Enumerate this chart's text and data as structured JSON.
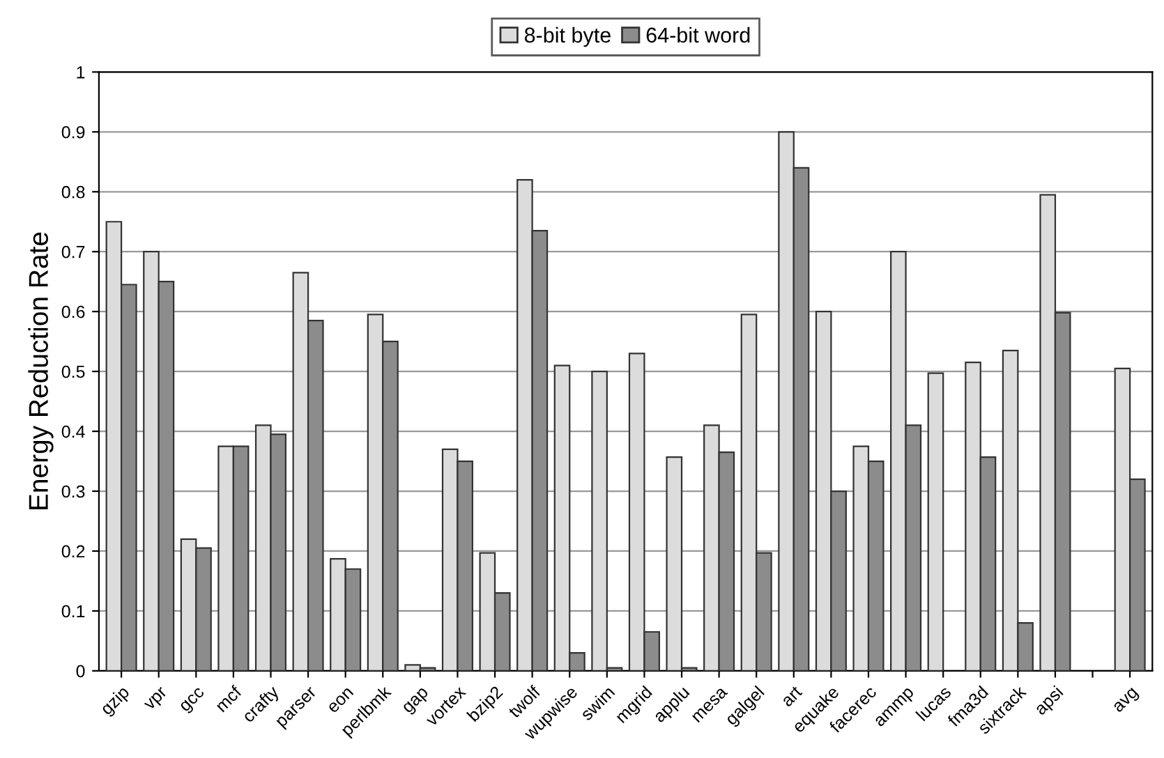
{
  "chart_data": {
    "type": "bar",
    "ylabel": "Energy Reduction Rate",
    "categories": [
      "gzip",
      "vpr",
      "gcc",
      "mcf",
      "crafty",
      "parser",
      "eon",
      "perlbmk",
      "gap",
      "vortex",
      "bzip2",
      "twolf",
      "wupwise",
      "swim",
      "mgrid",
      "applu",
      "mesa",
      "galgel",
      "art",
      "equake",
      "facerec",
      "ammp",
      "lucas",
      "fma3d",
      "sixtrack",
      "apsi",
      null,
      "avg"
    ],
    "series": [
      {
        "name": "8-bit byte",
        "color": "#dcdcdc",
        "values": [
          0.75,
          0.7,
          0.22,
          0.375,
          0.41,
          0.665,
          0.187,
          0.595,
          0.01,
          0.37,
          0.197,
          0.82,
          0.51,
          0.5,
          0.53,
          0.357,
          0.41,
          0.595,
          0.9,
          0.6,
          0.375,
          0.7,
          0.497,
          0.515,
          0.535,
          0.795,
          null,
          0.505
        ]
      },
      {
        "name": "64-bit word",
        "color": "#8c8c8c",
        "values": [
          0.645,
          0.65,
          0.205,
          0.375,
          0.395,
          0.585,
          0.17,
          0.55,
          0.005,
          0.35,
          0.13,
          0.735,
          0.03,
          0.005,
          0.065,
          0.005,
          0.365,
          0.197,
          0.84,
          0.3,
          0.35,
          0.41,
          null,
          0.357,
          0.08,
          0.598,
          null,
          0.32
        ]
      }
    ],
    "ylim": [
      0,
      1
    ],
    "yticks": [
      0,
      0.1,
      0.2,
      0.3,
      0.4,
      0.5,
      0.6,
      0.7,
      0.8,
      0.9,
      1
    ],
    "grid": "y",
    "legend": "top"
  }
}
